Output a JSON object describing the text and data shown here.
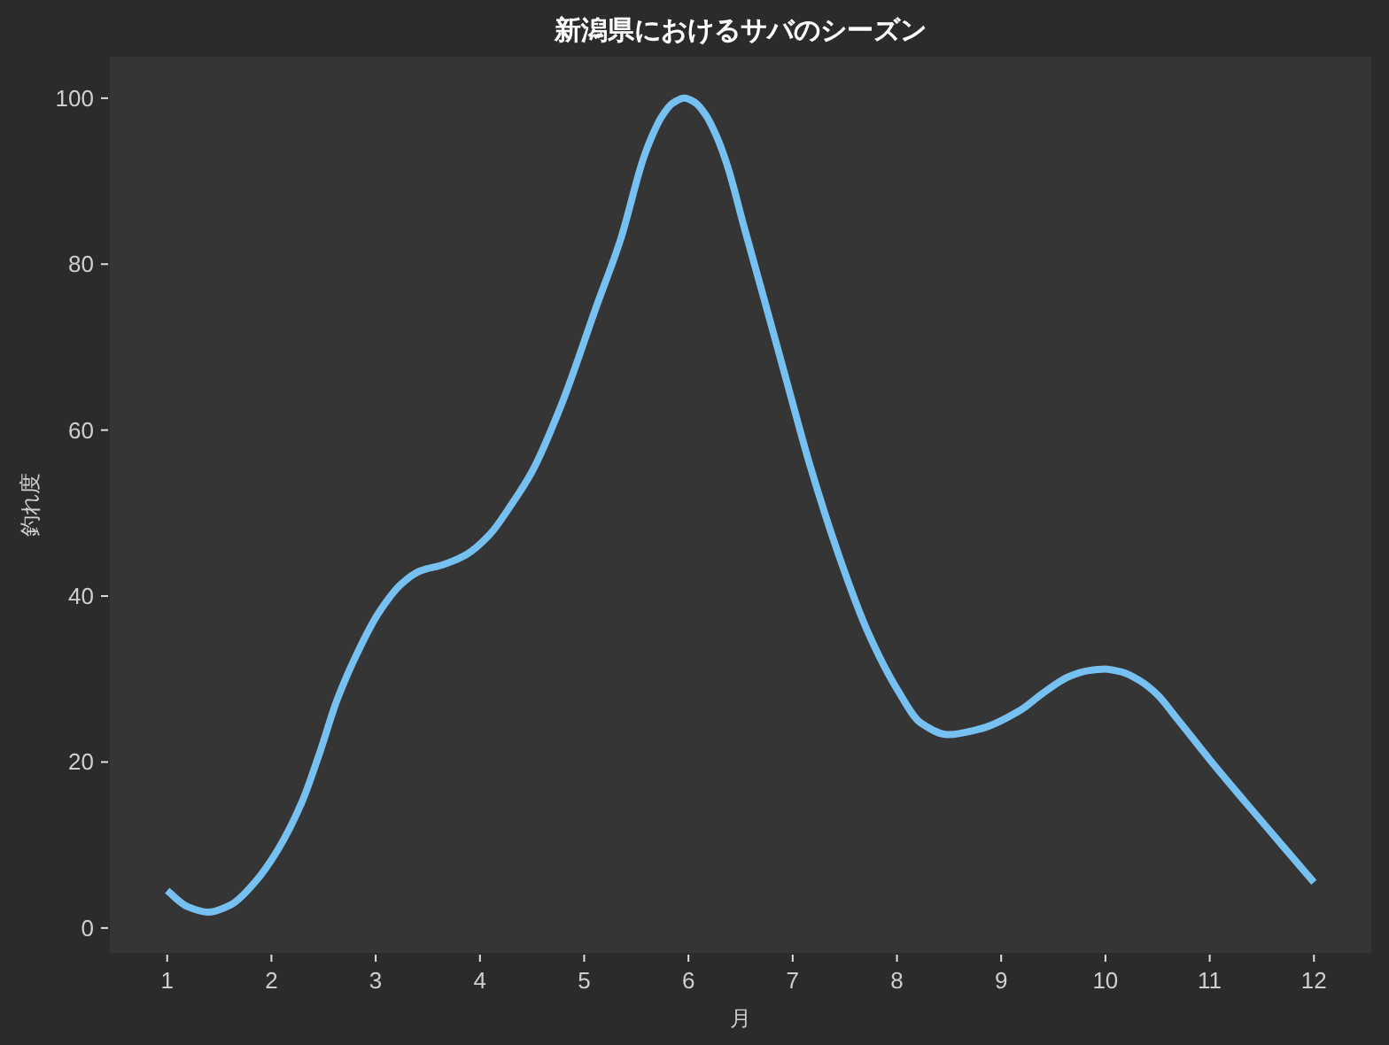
{
  "chart_data": {
    "type": "line",
    "title": "新潟県におけるサバのシーズン",
    "xlabel": "月",
    "ylabel": "釣れ度",
    "x": [
      1.0,
      1.19,
      1.39,
      1.61,
      1.84,
      2.06,
      2.29,
      2.46,
      2.63,
      2.8,
      3.03,
      3.25,
      3.42,
      3.65,
      3.87,
      4.1,
      4.3,
      4.5,
      4.78,
      5.12,
      5.35,
      5.57,
      5.65,
      5.74,
      5.85,
      5.96,
      6.06,
      6.17,
      6.27,
      6.37,
      6.54,
      6.73,
      6.94,
      7.16,
      7.44,
      7.72,
      8.01,
      8.23,
      8.49,
      8.8,
      9.19,
      9.4,
      9.65,
      9.83,
      9.99,
      10.17,
      10.33,
      10.5,
      10.67,
      11.0,
      11.34,
      11.68,
      12.0
    ],
    "series": [
      {
        "color": "#76c1f1",
        "values": [
          4.5,
          2.6,
          1.9,
          2.8,
          5.5,
          9.4,
          15.1,
          21,
          27.5,
          32.5,
          38,
          41.5,
          43,
          43.8,
          45,
          47.5,
          51,
          55,
          63,
          75,
          83,
          92.8,
          95.4,
          97.7,
          99.4,
          100,
          99.5,
          97.9,
          95.4,
          92,
          84.2,
          75.6,
          66,
          56,
          45,
          35.7,
          28.6,
          24.7,
          23.3,
          24,
          26.3,
          28.3,
          30.3,
          31,
          31.2,
          30.8,
          29.8,
          28.1,
          25.5,
          20.3,
          15.2,
          10.2,
          5.5
        ]
      }
    ],
    "xlim": [
      0.45,
      12.55
    ],
    "ylim": [
      -3,
      105
    ],
    "xticks": [
      1,
      2,
      3,
      4,
      5,
      6,
      7,
      8,
      9,
      10,
      11,
      12
    ],
    "yticks": [
      0,
      20,
      40,
      60,
      80,
      100
    ],
    "line_style": "solid"
  }
}
